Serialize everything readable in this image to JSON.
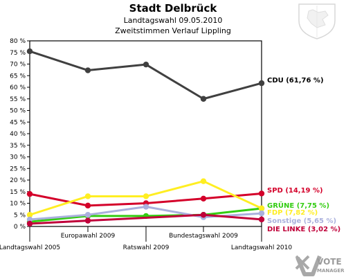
{
  "chart_data": {
    "type": "line",
    "title": "Stadt Delbrück",
    "subtitle1": "Landtagswahl 09.05.2010",
    "subtitle2": "Zweitstimmen Verlauf Lippling",
    "categories": [
      "Landtagswahl 2005",
      "Europawahl 2009",
      "Ratswahl 2009",
      "Bundestagswahl 2009",
      "Landtagswahl 2010"
    ],
    "yticks": [
      "0 %",
      "5 %",
      "10 %",
      "15 %",
      "20 %",
      "25 %",
      "30 %",
      "35 %",
      "40 %",
      "45 %",
      "50 %",
      "55 %",
      "60 %",
      "65 %",
      "70 %",
      "75 %",
      "80 %"
    ],
    "ylim": [
      0,
      80
    ],
    "grid": false,
    "series": [
      {
        "name": "CDU (61,76 %)",
        "color": "#404040",
        "values": [
          75.5,
          67.3,
          69.8,
          55.0,
          61.76
        ]
      },
      {
        "name": "SPD (14,19 %)",
        "color": "#d4002a",
        "values": [
          14.0,
          9.0,
          10.0,
          12.0,
          14.19
        ]
      },
      {
        "name": "GRÜNE (7,75 %)",
        "color": "#33cc11",
        "values": [
          2.0,
          4.5,
          4.5,
          5.0,
          7.75
        ]
      },
      {
        "name": "FDP (7,82 %)",
        "color": "#ffee22",
        "values": [
          5.0,
          13.0,
          13.0,
          19.5,
          7.82
        ]
      },
      {
        "name": "Sonstige (5,65 %)",
        "color": "#aab0dd",
        "values": [
          3.0,
          5.0,
          8.5,
          4.0,
          5.65
        ]
      },
      {
        "name": "DIE LINKE (3,02 %)",
        "color": "#c0003a",
        "values": [
          1.2,
          2.5,
          null,
          5.0,
          3.02
        ]
      }
    ]
  },
  "logo": {
    "line1": "VOTE",
    "line2": "MANAGER"
  }
}
